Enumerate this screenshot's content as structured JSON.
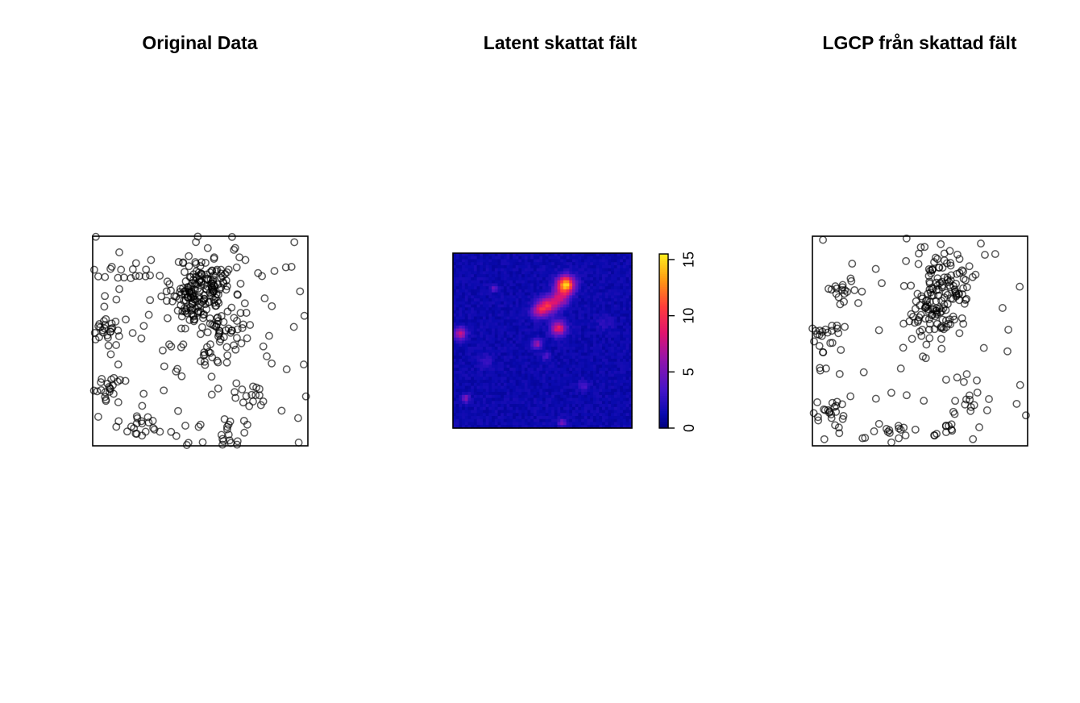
{
  "chart_data": [
    {
      "type": "scatter",
      "title": "Original Data",
      "xlim": [
        0,
        1
      ],
      "ylim": [
        0,
        1
      ],
      "clusters": [
        {
          "cx": 0.52,
          "cy": 0.78,
          "sx": 0.07,
          "sy": 0.06,
          "n": 110
        },
        {
          "cx": 0.46,
          "cy": 0.66,
          "sx": 0.05,
          "sy": 0.06,
          "n": 60
        },
        {
          "cx": 0.61,
          "cy": 0.57,
          "sx": 0.05,
          "sy": 0.06,
          "n": 40
        },
        {
          "cx": 0.06,
          "cy": 0.55,
          "sx": 0.04,
          "sy": 0.03,
          "n": 25
        },
        {
          "cx": 0.06,
          "cy": 0.28,
          "sx": 0.03,
          "sy": 0.03,
          "n": 15
        },
        {
          "cx": 0.22,
          "cy": 0.11,
          "sx": 0.05,
          "sy": 0.03,
          "n": 18
        },
        {
          "cx": 0.63,
          "cy": 0.05,
          "sx": 0.02,
          "sy": 0.03,
          "n": 12
        },
        {
          "cx": 0.16,
          "cy": 0.82,
          "sx": 0.05,
          "sy": 0.03,
          "n": 12
        },
        {
          "cx": 0.73,
          "cy": 0.24,
          "sx": 0.04,
          "sy": 0.04,
          "n": 15
        },
        {
          "cx": 0.54,
          "cy": 0.42,
          "sx": 0.03,
          "sy": 0.03,
          "n": 10
        }
      ],
      "background_points": 110,
      "seed": 11
    },
    {
      "type": "heatmap",
      "title": "Latent skattat fält",
      "colorbar": {
        "ticks": [
          0,
          5,
          10,
          15
        ],
        "min": 0,
        "max": 15.5
      },
      "base": 1.2,
      "blobs": [
        {
          "x": 0.63,
          "y": 0.82,
          "s": 0.035,
          "v": 13.5
        },
        {
          "x": 0.53,
          "y": 0.7,
          "s": 0.035,
          "v": 7.5
        },
        {
          "x": 0.48,
          "y": 0.67,
          "s": 0.03,
          "v": 5.5
        },
        {
          "x": 0.6,
          "y": 0.74,
          "s": 0.035,
          "v": 6
        },
        {
          "x": 0.59,
          "y": 0.57,
          "s": 0.03,
          "v": 8
        },
        {
          "x": 0.47,
          "y": 0.48,
          "s": 0.02,
          "v": 5
        },
        {
          "x": 0.52,
          "y": 0.41,
          "s": 0.015,
          "v": 3
        },
        {
          "x": 0.04,
          "y": 0.54,
          "s": 0.025,
          "v": 6.5
        },
        {
          "x": 0.07,
          "y": 0.17,
          "s": 0.015,
          "v": 5
        },
        {
          "x": 0.23,
          "y": 0.8,
          "s": 0.015,
          "v": 3
        },
        {
          "x": 0.61,
          "y": 0.03,
          "s": 0.015,
          "v": 4
        },
        {
          "x": 0.73,
          "y": 0.24,
          "s": 0.02,
          "v": 2.5
        },
        {
          "x": 0.18,
          "y": 0.38,
          "s": 0.03,
          "v": 1.5
        },
        {
          "x": 0.85,
          "y": 0.6,
          "s": 0.03,
          "v": 1.2
        }
      ],
      "seed": 5
    },
    {
      "type": "scatter",
      "title": "LGCP från skattad fält",
      "xlim": [
        0,
        1
      ],
      "ylim": [
        0,
        1
      ],
      "clusters": [
        {
          "cx": 0.62,
          "cy": 0.78,
          "sx": 0.06,
          "sy": 0.06,
          "n": 70
        },
        {
          "cx": 0.55,
          "cy": 0.62,
          "sx": 0.06,
          "sy": 0.07,
          "n": 70
        },
        {
          "cx": 0.06,
          "cy": 0.52,
          "sx": 0.04,
          "sy": 0.06,
          "n": 22
        },
        {
          "cx": 0.08,
          "cy": 0.15,
          "sx": 0.05,
          "sy": 0.04,
          "n": 22
        },
        {
          "cx": 0.58,
          "cy": 0.08,
          "sx": 0.04,
          "sy": 0.03,
          "n": 10
        },
        {
          "cx": 0.35,
          "cy": 0.06,
          "sx": 0.05,
          "sy": 0.03,
          "n": 10
        },
        {
          "cx": 0.12,
          "cy": 0.74,
          "sx": 0.06,
          "sy": 0.04,
          "n": 14
        },
        {
          "cx": 0.73,
          "cy": 0.2,
          "sx": 0.04,
          "sy": 0.05,
          "n": 12
        }
      ],
      "background_points": 75,
      "seed": 23
    }
  ]
}
